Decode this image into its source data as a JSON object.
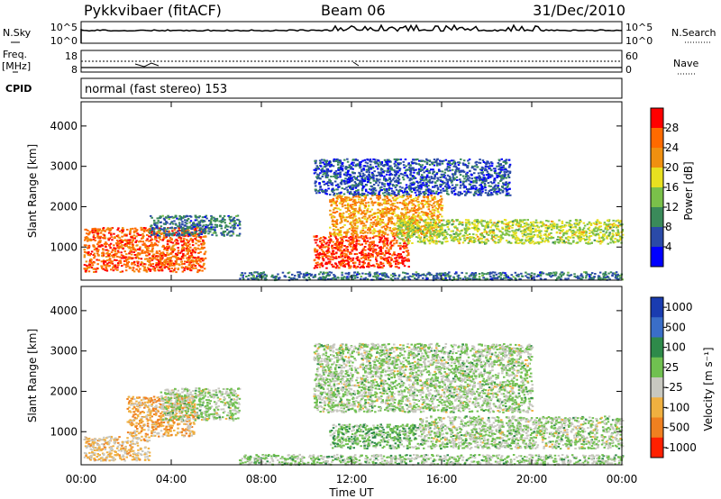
{
  "header": {
    "title": "Pykkvibaer (fitACF)",
    "beam": "Beam 06",
    "date": "31/Dec/2010"
  },
  "top_panels": {
    "nsky_label": "N.Sky",
    "nsky_ticks": [
      "10^5",
      "10^0"
    ],
    "nsearch_label": "N.Search",
    "nsearch_ticks": [
      "10^5",
      "10^0"
    ],
    "freq_label_1": "Freq.",
    "freq_label_2": "[MHz]",
    "freq_ticks": [
      "18",
      "8"
    ],
    "nave_label": "Nave",
    "nave_ticks": [
      "60",
      "0"
    ],
    "cpid_label": "CPID",
    "cpid_text": "normal (fast stereo) 153"
  },
  "colorbars": {
    "power": {
      "label": "Power [dB]",
      "ticks": [
        "28",
        "24",
        "20",
        "16",
        "12",
        "8",
        "4"
      ],
      "colors": [
        "#0000ff",
        "#2a4aa8",
        "#3a8a5a",
        "#7ac04a",
        "#e8e020",
        "#f09010",
        "#ff6a00",
        "#ff0000"
      ]
    },
    "velocity": {
      "label": "Velocity [m s⁻¹]",
      "ticks": [
        "1000",
        "500",
        "100",
        "25",
        "-25",
        "-100",
        "-500",
        "-1000"
      ],
      "colors": [
        "#1a3cb0",
        "#3a6ec8",
        "#2e8a4a",
        "#70c050",
        "#c8c8c0",
        "#f0b040",
        "#f08020",
        "#ff2000"
      ]
    }
  },
  "chart_data": [
    {
      "type": "heatmap",
      "title": "Power",
      "ylabel": "Slant Range [km]",
      "xlabel": "",
      "x_ticks": [
        "00:00",
        "04:00",
        "08:00",
        "12:00",
        "16:00",
        "20:00",
        "00:00"
      ],
      "xlim_hours": [
        0,
        24
      ],
      "y_ticks": [
        "1000",
        "2000",
        "3000",
        "4000"
      ],
      "ylim": [
        180,
        4600
      ],
      "clim_db": [
        0,
        32
      ],
      "regions": [
        {
          "t0": 0.1,
          "t1": 5.5,
          "r0": 400,
          "r1": 1500,
          "value": 26
        },
        {
          "t0": 3.0,
          "t1": 7.0,
          "r0": 1300,
          "r1": 1800,
          "value": 8
        },
        {
          "t0": 10.3,
          "t1": 14.5,
          "r0": 500,
          "r1": 1300,
          "value": 28
        },
        {
          "t0": 11.0,
          "t1": 16.0,
          "r0": 1300,
          "r1": 2300,
          "value": 22
        },
        {
          "t0": 14.0,
          "t1": 24.0,
          "r0": 1100,
          "r1": 1700,
          "value": 16
        },
        {
          "t0": 10.3,
          "t1": 19.0,
          "r0": 2300,
          "r1": 3200,
          "value": 6
        },
        {
          "t0": 7.0,
          "t1": 24.0,
          "r0": 200,
          "r1": 400,
          "value": 8
        }
      ]
    },
    {
      "type": "heatmap",
      "title": "Velocity",
      "ylabel": "Slant Range [km]",
      "xlabel": "Time UT",
      "x_ticks": [
        "00:00",
        "04:00",
        "08:00",
        "12:00",
        "16:00",
        "20:00",
        "00:00"
      ],
      "xlim_hours": [
        0,
        24
      ],
      "y_ticks": [
        "1000",
        "2000",
        "3000",
        "4000"
      ],
      "ylim": [
        180,
        4600
      ],
      "clim_ms": [
        -1000,
        1000
      ],
      "regions": [
        {
          "t0": 0.1,
          "t1": 3.0,
          "r0": 300,
          "r1": 900,
          "value": -300
        },
        {
          "t0": 2.0,
          "t1": 5.0,
          "r0": 900,
          "r1": 1900,
          "value": -400
        },
        {
          "t0": 3.5,
          "t1": 7.0,
          "r0": 1300,
          "r1": 2100,
          "value": 0
        },
        {
          "t0": 10.3,
          "t1": 20.0,
          "r0": 1500,
          "r1": 3200,
          "value": 0
        },
        {
          "t0": 11.0,
          "t1": 15.0,
          "r0": 600,
          "r1": 1200,
          "value": 120
        },
        {
          "t0": 15.0,
          "t1": 24.0,
          "r0": 600,
          "r1": 1400,
          "value": 0
        },
        {
          "t0": 7.0,
          "t1": 24.0,
          "r0": 200,
          "r1": 450,
          "value": 30
        }
      ]
    }
  ]
}
